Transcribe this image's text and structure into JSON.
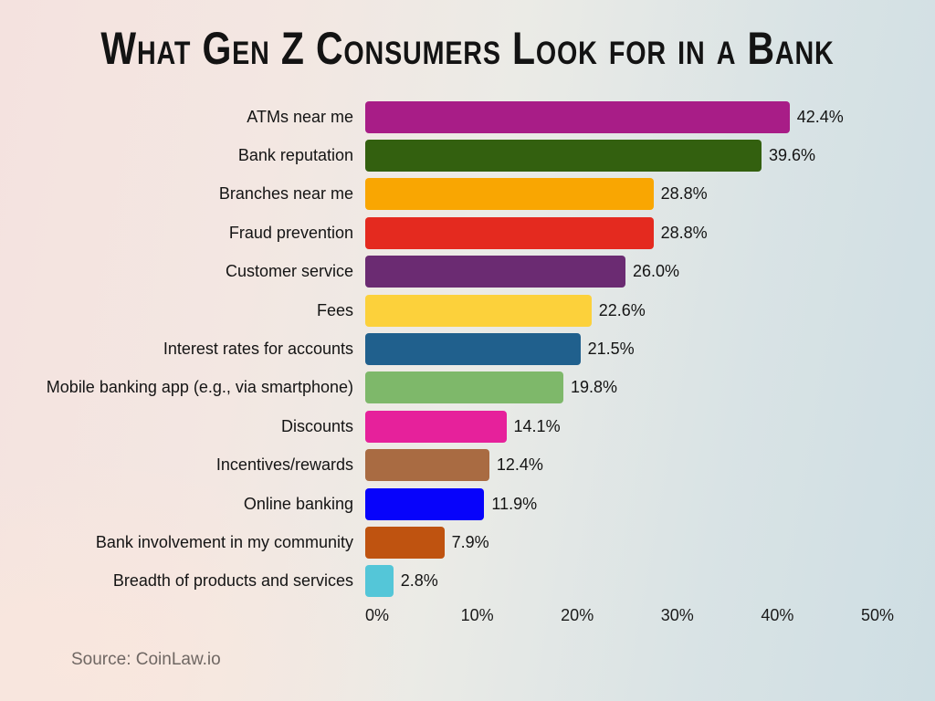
{
  "title": "What Gen Z Consumers Look for in a Bank",
  "source": "Source: CoinLaw.io",
  "colors": {
    "background_left": "#f4e2df",
    "background_right": "#cedee3",
    "text": "#141414",
    "source_text": "#6f6763"
  },
  "chart_data": {
    "type": "bar",
    "orientation": "horizontal",
    "title": "What Gen Z Consumers Look for in a Bank",
    "xlabel": "",
    "ylabel": "",
    "xlim": [
      0,
      50
    ],
    "grid": false,
    "legend": false,
    "x_ticks": [
      {
        "value": 0,
        "label": "0%"
      },
      {
        "value": 10,
        "label": "10%"
      },
      {
        "value": 20,
        "label": "20%"
      },
      {
        "value": 30,
        "label": "30%"
      },
      {
        "value": 40,
        "label": "40%"
      },
      {
        "value": 50,
        "label": "50%"
      }
    ],
    "bars": [
      {
        "category": "ATMs near me",
        "value": 42.4,
        "label": "42.4%",
        "color": "#a81d87"
      },
      {
        "category": "Bank reputation",
        "value": 39.6,
        "label": "39.6%",
        "color": "#33600f"
      },
      {
        "category": "Branches near me",
        "value": 28.8,
        "label": "28.8%",
        "color": "#f9a602"
      },
      {
        "category": "Fraud prevention",
        "value": 28.8,
        "label": "28.8%",
        "color": "#e42a1f"
      },
      {
        "category": "Customer service",
        "value": 26.0,
        "label": "26.0%",
        "color": "#6b2b72"
      },
      {
        "category": "Fees",
        "value": 22.6,
        "label": "22.6%",
        "color": "#fcd13b"
      },
      {
        "category": "Interest rates for accounts",
        "value": 21.5,
        "label": "21.5%",
        "color": "#20608d"
      },
      {
        "category": "Mobile banking app (e.g., via smartphone)",
        "value": 19.8,
        "label": "19.8%",
        "color": "#7eb86a"
      },
      {
        "category": "Discounts",
        "value": 14.1,
        "label": "14.1%",
        "color": "#e6219b"
      },
      {
        "category": "Incentives/rewards",
        "value": 12.4,
        "label": "12.4%",
        "color": "#a96b42"
      },
      {
        "category": "Online banking",
        "value": 11.9,
        "label": "11.9%",
        "color": "#0703fb"
      },
      {
        "category": "Bank involvement in my community",
        "value": 7.9,
        "label": "7.9%",
        "color": "#bf5310"
      },
      {
        "category": "Breadth of products and services",
        "value": 2.8,
        "label": "2.8%",
        "color": "#54c6d8"
      }
    ]
  }
}
